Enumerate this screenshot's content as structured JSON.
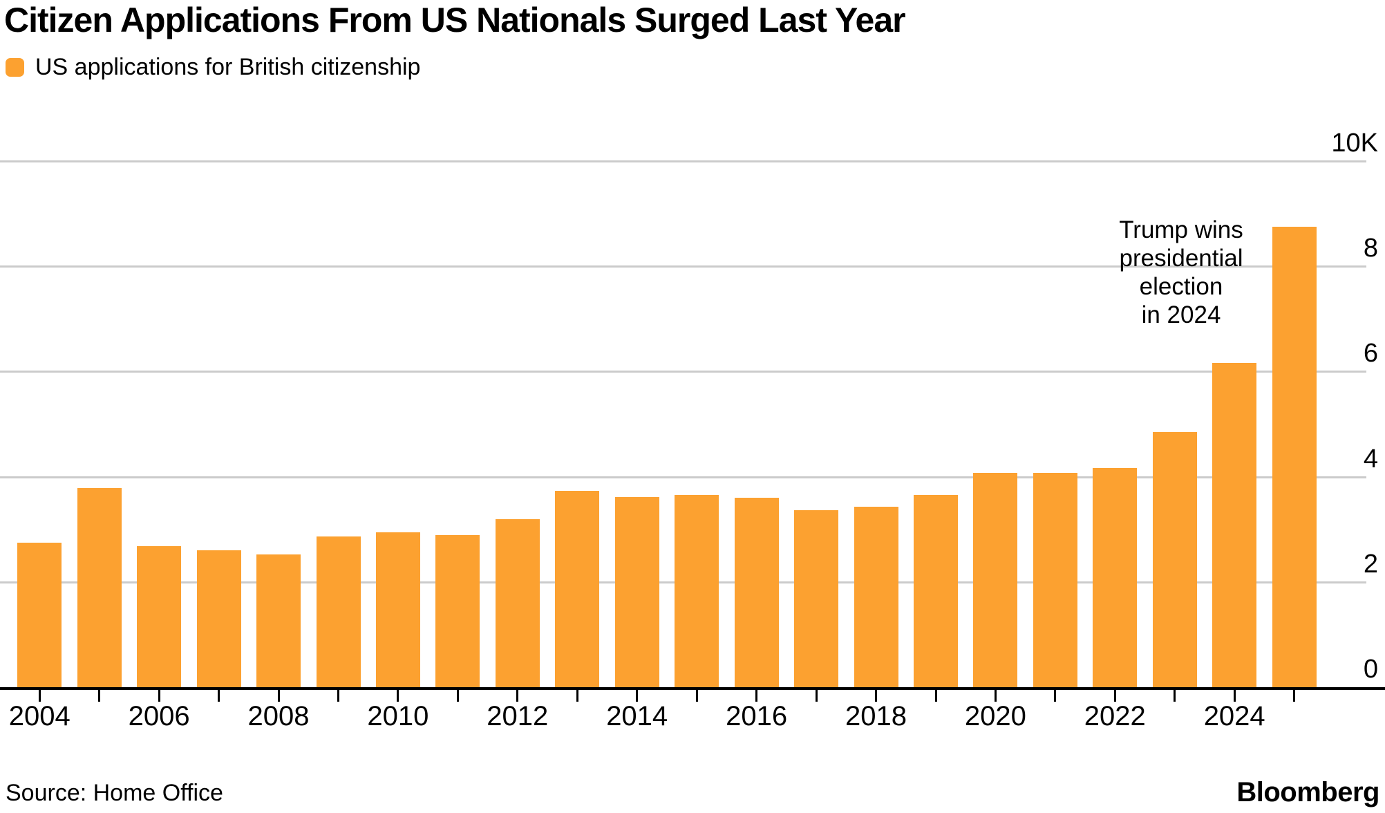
{
  "header": {
    "title": "Citizen Applications From US Nationals Surged Last Year",
    "legend": {
      "label": "US applications for British citizenship",
      "swatch_color": "#FCA130"
    }
  },
  "chart_data": {
    "type": "bar",
    "title": "Citizen Applications From US Nationals Surged Last Year",
    "series_name": "US applications for British citizenship",
    "unit": "applications per year",
    "categories": [
      2004,
      2005,
      2006,
      2007,
      2008,
      2009,
      2010,
      2011,
      2012,
      2013,
      2014,
      2015,
      2016,
      2017,
      2018,
      2019,
      2020,
      2021,
      2022,
      2023,
      2024,
      2025
    ],
    "values": [
      2750,
      3790,
      2680,
      2600,
      2520,
      2870,
      2950,
      2890,
      3190,
      3730,
      3610,
      3650,
      3600,
      3360,
      3430,
      3650,
      4070,
      4070,
      4170,
      4850,
      6160,
      8750
    ],
    "y_axis": {
      "tick_values": [
        0,
        2000,
        4000,
        6000,
        8000,
        10000
      ],
      "tick_labels": [
        "0",
        "2",
        "4",
        "6",
        "8",
        "10K"
      ],
      "min": 0,
      "max": 10000,
      "grid": true,
      "side": "right"
    },
    "x_axis": {
      "tick_labels": [
        "2004",
        "2006",
        "2008",
        "2010",
        "2012",
        "2014",
        "2016",
        "2018",
        "2020",
        "2022",
        "2024"
      ]
    },
    "annotation": {
      "text": "Trump wins presidential election in 2024",
      "lines": [
        "Trump wins",
        "presidential",
        "election",
        "in 2024"
      ],
      "points_to": 2025
    },
    "bar_color": "#FCA130",
    "grid_color": "#CBCBCB",
    "axis_color": "#000000",
    "legend_position": "top-left"
  },
  "footer": {
    "source": "Source: Home Office",
    "brand": "Bloomberg"
  }
}
